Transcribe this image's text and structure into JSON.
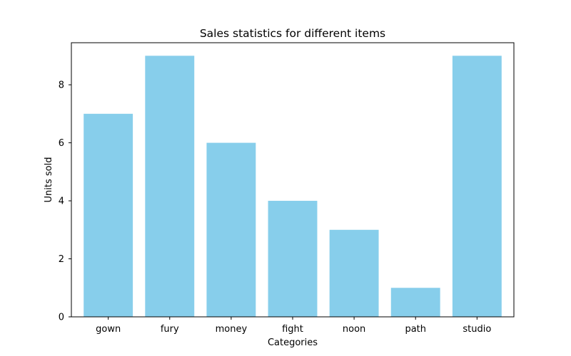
{
  "chart_data": {
    "type": "bar",
    "title": "Sales statistics for different items",
    "xlabel": "Categories",
    "ylabel": "Units sold",
    "categories": [
      "gown",
      "fury",
      "money",
      "fight",
      "noon",
      "path",
      "studio"
    ],
    "values": [
      7,
      9,
      6,
      4,
      3,
      1,
      9
    ],
    "ylim": [
      0,
      9.45
    ],
    "yticks": [
      0,
      2,
      4,
      6,
      8
    ],
    "grid": false,
    "bar_color": "#87CEEB",
    "legend": "none"
  }
}
